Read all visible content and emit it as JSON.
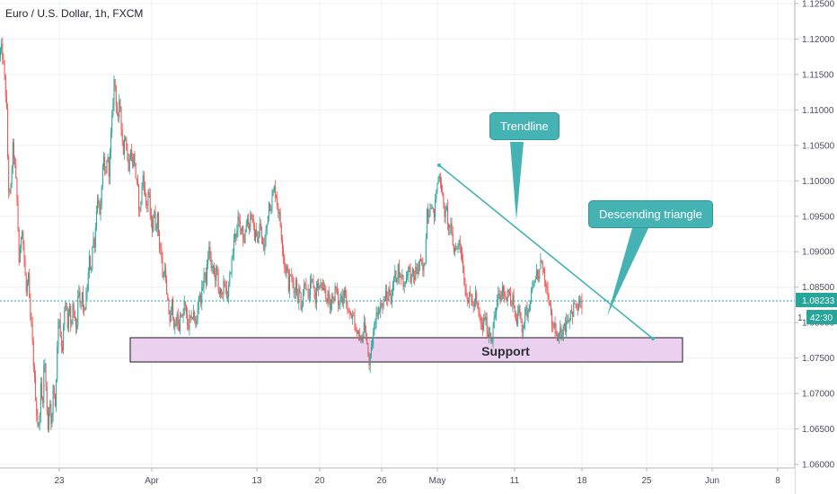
{
  "chart_title": "Euro / U.S. Dollar, 1h, FXCM",
  "current_price": "1.08233",
  "countdown": "42:30",
  "colors": {
    "up": "#26a69a",
    "down": "#ef5350",
    "annotation": "#45b3b3",
    "support_fill": "#ebd0f0",
    "price_line": "#26a69a",
    "grid": "#eef0f3"
  },
  "annotations": {
    "trendline_label": "Trendline",
    "triangle_label": "Descending triangle",
    "support_label": "Support"
  },
  "chart_data": {
    "type": "candlestick",
    "symbol": "EURUSD",
    "timeframe": "1h",
    "title": "Euro / U.S. Dollar, 1h, FXCM",
    "x_ticks": [
      "23",
      "Apr",
      "13",
      "20",
      "26",
      "May",
      "11",
      "18",
      "25",
      "Jun",
      "8"
    ],
    "y_ticks": [
      "1.12500",
      "1.12000",
      "1.11500",
      "1.11000",
      "1.10500",
      "1.10000",
      "1.09500",
      "1.09000",
      "1.08500",
      "1.08000",
      "1.07500",
      "1.07000",
      "1.06500",
      "1.06000"
    ],
    "ylim": [
      1.0595,
      1.1255
    ],
    "grid": true,
    "price_path": [
      [
        0,
        1.1175
      ],
      [
        2,
        1.119
      ],
      [
        5,
        1.116
      ],
      [
        8,
        1.11
      ],
      [
        10,
        1.099
      ],
      [
        12,
        1.0975
      ],
      [
        15,
        1.105
      ],
      [
        18,
        1.101
      ],
      [
        20,
        1.096
      ],
      [
        22,
        1.088
      ],
      [
        25,
        1.094
      ],
      [
        28,
        1.088
      ],
      [
        30,
        1.084
      ],
      [
        32,
        1.087
      ],
      [
        34,
        1.081
      ],
      [
        36,
        1.079
      ],
      [
        38,
        1.074
      ],
      [
        40,
        1.07
      ],
      [
        42,
        1.066
      ],
      [
        44,
        1.065
      ],
      [
        46,
        1.071
      ],
      [
        48,
        1.068
      ],
      [
        50,
        1.076
      ],
      [
        52,
        1.07
      ],
      [
        54,
        1.065
      ],
      [
        56,
        1.07
      ],
      [
        58,
        1.064
      ],
      [
        60,
        1.072
      ],
      [
        62,
        1.068
      ],
      [
        64,
        1.075
      ],
      [
        66,
        1.082
      ],
      [
        68,
        1.078
      ],
      [
        70,
        1.076
      ],
      [
        72,
        1.081
      ],
      [
        74,
        1.083
      ],
      [
        76,
        1.079
      ],
      [
        78,
        1.083
      ],
      [
        80,
        1.078
      ],
      [
        82,
        1.083
      ],
      [
        84,
        1.08
      ],
      [
        86,
        1.079
      ],
      [
        88,
        1.085
      ],
      [
        90,
        1.082
      ],
      [
        92,
        1.084
      ],
      [
        94,
        1.081
      ],
      [
        96,
        1.083
      ],
      [
        98,
        1.085
      ],
      [
        100,
        1.089
      ],
      [
        102,
        1.087
      ],
      [
        104,
        1.092
      ],
      [
        106,
        1.091
      ],
      [
        108,
        1.096
      ],
      [
        110,
        1.098
      ],
      [
        112,
        1.094
      ],
      [
        114,
        1.1
      ],
      [
        116,
        1.103
      ],
      [
        118,
        1.1
      ],
      [
        120,
        1.104
      ],
      [
        122,
        1.101
      ],
      [
        124,
        1.106
      ],
      [
        126,
        1.11
      ],
      [
        128,
        1.115
      ],
      [
        130,
        1.111
      ],
      [
        132,
        1.108
      ],
      [
        134,
        1.112
      ],
      [
        136,
        1.107
      ],
      [
        138,
        1.104
      ],
      [
        140,
        1.107
      ],
      [
        142,
        1.104
      ],
      [
        144,
        1.101
      ],
      [
        146,
        1.105
      ],
      [
        148,
        1.102
      ],
      [
        150,
        1.104
      ],
      [
        152,
        1.1
      ],
      [
        154,
        1.099
      ],
      [
        156,
        1.095
      ],
      [
        158,
        1.098
      ],
      [
        160,
        1.101
      ],
      [
        162,
        1.098
      ],
      [
        164,
        1.096
      ],
      [
        166,
        1.099
      ],
      [
        168,
        1.095
      ],
      [
        170,
        1.093
      ],
      [
        172,
        1.096
      ],
      [
        174,
        1.093
      ],
      [
        176,
        1.095
      ],
      [
        178,
        1.091
      ],
      [
        180,
        1.09
      ],
      [
        182,
        1.086
      ],
      [
        184,
        1.088
      ],
      [
        186,
        1.084
      ],
      [
        188,
        1.082
      ],
      [
        190,
        1.08
      ],
      [
        192,
        1.083
      ],
      [
        194,
        1.08
      ],
      [
        196,
        1.079
      ],
      [
        198,
        1.081
      ],
      [
        200,
        1.079
      ],
      [
        202,
        1.082
      ],
      [
        204,
        1.08
      ],
      [
        206,
        1.083
      ],
      [
        208,
        1.081
      ],
      [
        210,
        1.079
      ],
      [
        212,
        1.081
      ],
      [
        214,
        1.08
      ],
      [
        216,
        1.082
      ],
      [
        218,
        1.079
      ],
      [
        220,
        1.081
      ],
      [
        222,
        1.084
      ],
      [
        224,
        1.083
      ],
      [
        226,
        1.085
      ],
      [
        228,
        1.087
      ],
      [
        230,
        1.086
      ],
      [
        232,
        1.089
      ],
      [
        234,
        1.091
      ],
      [
        236,
        1.087
      ],
      [
        238,
        1.088
      ],
      [
        240,
        1.086
      ],
      [
        242,
        1.088
      ],
      [
        244,
        1.084
      ],
      [
        246,
        1.085
      ],
      [
        248,
        1.083
      ],
      [
        250,
        1.086
      ],
      [
        252,
        1.085
      ],
      [
        254,
        1.083
      ],
      [
        256,
        1.086
      ],
      [
        258,
        1.088
      ],
      [
        260,
        1.09
      ],
      [
        262,
        1.093
      ],
      [
        264,
        1.092
      ],
      [
        266,
        1.095
      ],
      [
        268,
        1.093
      ],
      [
        270,
        1.094
      ],
      [
        272,
        1.091
      ],
      [
        274,
        1.093
      ],
      [
        276,
        1.095
      ],
      [
        278,
        1.093
      ],
      [
        280,
        1.096
      ],
      [
        282,
        1.094
      ],
      [
        284,
        1.092
      ],
      [
        286,
        1.093
      ],
      [
        288,
        1.091
      ],
      [
        290,
        1.094
      ],
      [
        292,
        1.092
      ],
      [
        294,
        1.09
      ],
      [
        296,
        1.092
      ],
      [
        298,
        1.094
      ],
      [
        300,
        1.097
      ],
      [
        302,
        1.096
      ],
      [
        304,
        1.098
      ],
      [
        306,
        1.099
      ],
      [
        308,
        1.098
      ],
      [
        310,
        1.096
      ],
      [
        312,
        1.095
      ],
      [
        314,
        1.092
      ],
      [
        316,
        1.09
      ],
      [
        318,
        1.087
      ],
      [
        320,
        1.088
      ],
      [
        322,
        1.085
      ],
      [
        324,
        1.087
      ],
      [
        326,
        1.086
      ],
      [
        328,
        1.084
      ],
      [
        330,
        1.086
      ],
      [
        332,
        1.083
      ],
      [
        334,
        1.085
      ],
      [
        336,
        1.082
      ],
      [
        338,
        1.084
      ],
      [
        340,
        1.086
      ],
      [
        342,
        1.085
      ],
      [
        344,
        1.083
      ],
      [
        346,
        1.085
      ],
      [
        348,
        1.086
      ],
      [
        350,
        1.085
      ],
      [
        352,
        1.083
      ],
      [
        354,
        1.086
      ],
      [
        356,
        1.084
      ],
      [
        358,
        1.086
      ],
      [
        360,
        1.084
      ],
      [
        362,
        1.085
      ],
      [
        364,
        1.083
      ],
      [
        366,
        1.084
      ],
      [
        368,
        1.082
      ],
      [
        370,
        1.084
      ],
      [
        372,
        1.083
      ],
      [
        374,
        1.085
      ],
      [
        376,
        1.084
      ],
      [
        378,
        1.082
      ],
      [
        380,
        1.084
      ],
      [
        382,
        1.083
      ],
      [
        384,
        1.085
      ],
      [
        386,
        1.083
      ],
      [
        388,
        1.081
      ],
      [
        390,
        1.082
      ],
      [
        392,
        1.08
      ],
      [
        394,
        1.081
      ],
      [
        396,
        1.079
      ],
      [
        398,
        1.078
      ],
      [
        400,
        1.079
      ],
      [
        402,
        1.077
      ],
      [
        404,
        1.078
      ],
      [
        406,
        1.08
      ],
      [
        408,
        1.078
      ],
      [
        410,
        1.076
      ],
      [
        412,
        1.074
      ],
      [
        414,
        1.076
      ],
      [
        416,
        1.078
      ],
      [
        418,
        1.08
      ],
      [
        420,
        1.082
      ],
      [
        422,
        1.081
      ],
      [
        424,
        1.083
      ],
      [
        426,
        1.082
      ],
      [
        428,
        1.083
      ],
      [
        430,
        1.084
      ],
      [
        432,
        1.083
      ],
      [
        434,
        1.085
      ],
      [
        436,
        1.083
      ],
      [
        438,
        1.085
      ],
      [
        440,
        1.087
      ],
      [
        442,
        1.086
      ],
      [
        444,
        1.088
      ],
      [
        446,
        1.086
      ],
      [
        448,
        1.087
      ],
      [
        450,
        1.085
      ],
      [
        452,
        1.086
      ],
      [
        454,
        1.087
      ],
      [
        456,
        1.088
      ],
      [
        458,
        1.086
      ],
      [
        460,
        1.087
      ],
      [
        462,
        1.086
      ],
      [
        464,
        1.088
      ],
      [
        466,
        1.087
      ],
      [
        468,
        1.089
      ],
      [
        470,
        1.088
      ],
      [
        472,
        1.087
      ],
      [
        474,
        1.089
      ],
      [
        476,
        1.096
      ],
      [
        478,
        1.095
      ],
      [
        480,
        1.097
      ],
      [
        482,
        1.096
      ],
      [
        484,
        1.095
      ],
      [
        486,
        1.098
      ],
      [
        488,
        1.1
      ],
      [
        490,
        1.101
      ],
      [
        492,
        1.099
      ],
      [
        494,
        1.097
      ],
      [
        496,
        1.095
      ],
      [
        498,
        1.096
      ],
      [
        500,
        1.093
      ],
      [
        502,
        1.094
      ],
      [
        504,
        1.092
      ],
      [
        506,
        1.09
      ],
      [
        508,
        1.091
      ],
      [
        510,
        1.09
      ],
      [
        512,
        1.092
      ],
      [
        514,
        1.09
      ],
      [
        516,
        1.088
      ],
      [
        518,
        1.085
      ],
      [
        520,
        1.084
      ],
      [
        522,
        1.083
      ],
      [
        524,
        1.084
      ],
      [
        526,
        1.083
      ],
      [
        528,
        1.082
      ],
      [
        530,
        1.084
      ],
      [
        532,
        1.082
      ],
      [
        534,
        1.081
      ],
      [
        536,
        1.08
      ],
      [
        538,
        1.079
      ],
      [
        540,
        1.081
      ],
      [
        542,
        1.08
      ],
      [
        544,
        1.078
      ],
      [
        546,
        1.079
      ],
      [
        548,
        1.077
      ],
      [
        550,
        1.08
      ],
      [
        552,
        1.081
      ],
      [
        554,
        1.083
      ],
      [
        556,
        1.084
      ],
      [
        558,
        1.083
      ],
      [
        560,
        1.085
      ],
      [
        562,
        1.084
      ],
      [
        564,
        1.083
      ],
      [
        566,
        1.085
      ],
      [
        568,
        1.084
      ],
      [
        570,
        1.082
      ],
      [
        572,
        1.084
      ],
      [
        574,
        1.081
      ],
      [
        576,
        1.08
      ],
      [
        578,
        1.082
      ],
      [
        580,
        1.081
      ],
      [
        582,
        1.079
      ],
      [
        584,
        1.08
      ],
      [
        586,
        1.082
      ],
      [
        588,
        1.081
      ],
      [
        590,
        1.083
      ],
      [
        592,
        1.084
      ],
      [
        594,
        1.086
      ],
      [
        596,
        1.085
      ],
      [
        598,
        1.087
      ],
      [
        600,
        1.086
      ],
      [
        602,
        1.088
      ],
      [
        604,
        1.089
      ],
      [
        606,
        1.087
      ],
      [
        608,
        1.085
      ],
      [
        610,
        1.084
      ],
      [
        612,
        1.083
      ],
      [
        614,
        1.081
      ],
      [
        616,
        1.079
      ],
      [
        618,
        1.08
      ],
      [
        620,
        1.078
      ],
      [
        622,
        1.077
      ],
      [
        624,
        1.079
      ],
      [
        626,
        1.078
      ],
      [
        628,
        1.08
      ],
      [
        630,
        1.079
      ],
      [
        632,
        1.081
      ],
      [
        634,
        1.08
      ],
      [
        636,
        1.082
      ],
      [
        638,
        1.081
      ],
      [
        640,
        1.083
      ],
      [
        642,
        1.082
      ],
      [
        644,
        1.082
      ],
      [
        646,
        1.083
      ],
      [
        648,
        1.0823
      ]
    ]
  }
}
